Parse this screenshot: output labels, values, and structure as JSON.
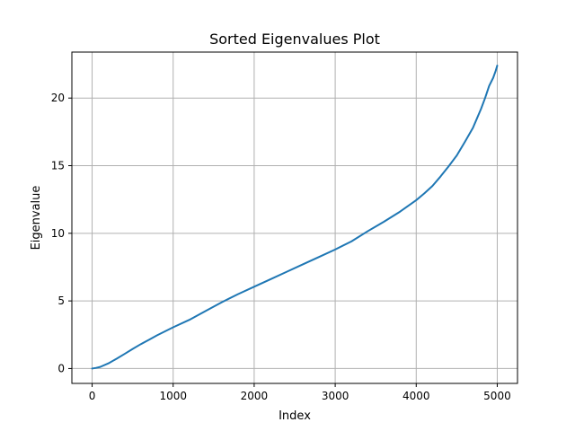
{
  "chart_data": {
    "type": "line",
    "title": "Sorted Eigenvalues Plot",
    "xlabel": "Index",
    "ylabel": "Eigenvalue",
    "xlim": [
      -250,
      5250
    ],
    "ylim": [
      -1.1,
      23.4
    ],
    "xticks": [
      0,
      1000,
      2000,
      3000,
      4000,
      5000
    ],
    "xtick_labels": [
      "0",
      "1000",
      "2000",
      "3000",
      "4000",
      "5000"
    ],
    "yticks": [
      0,
      5,
      10,
      15,
      20
    ],
    "ytick_labels": [
      "0",
      "5",
      "10",
      "15",
      "20"
    ],
    "grid": true,
    "color": "#1f77b4",
    "x": [
      0,
      50,
      100,
      200,
      300,
      400,
      500,
      600,
      700,
      800,
      900,
      1000,
      1200,
      1400,
      1600,
      1800,
      2000,
      2200,
      2400,
      2600,
      2800,
      3000,
      3200,
      3400,
      3600,
      3800,
      4000,
      4100,
      4200,
      4300,
      4400,
      4500,
      4600,
      4700,
      4750,
      4800,
      4850,
      4900,
      4950,
      4980,
      5000
    ],
    "y": [
      0.0,
      0.05,
      0.12,
      0.38,
      0.72,
      1.08,
      1.45,
      1.8,
      2.12,
      2.45,
      2.75,
      3.05,
      3.6,
      4.25,
      4.9,
      5.5,
      6.05,
      6.6,
      7.15,
      7.7,
      8.25,
      8.8,
      9.4,
      10.15,
      10.85,
      11.6,
      12.45,
      12.95,
      13.5,
      14.2,
      14.95,
      15.75,
      16.75,
      17.8,
      18.5,
      19.2,
      20.0,
      20.9,
      21.5,
      22.0,
      22.4
    ]
  }
}
